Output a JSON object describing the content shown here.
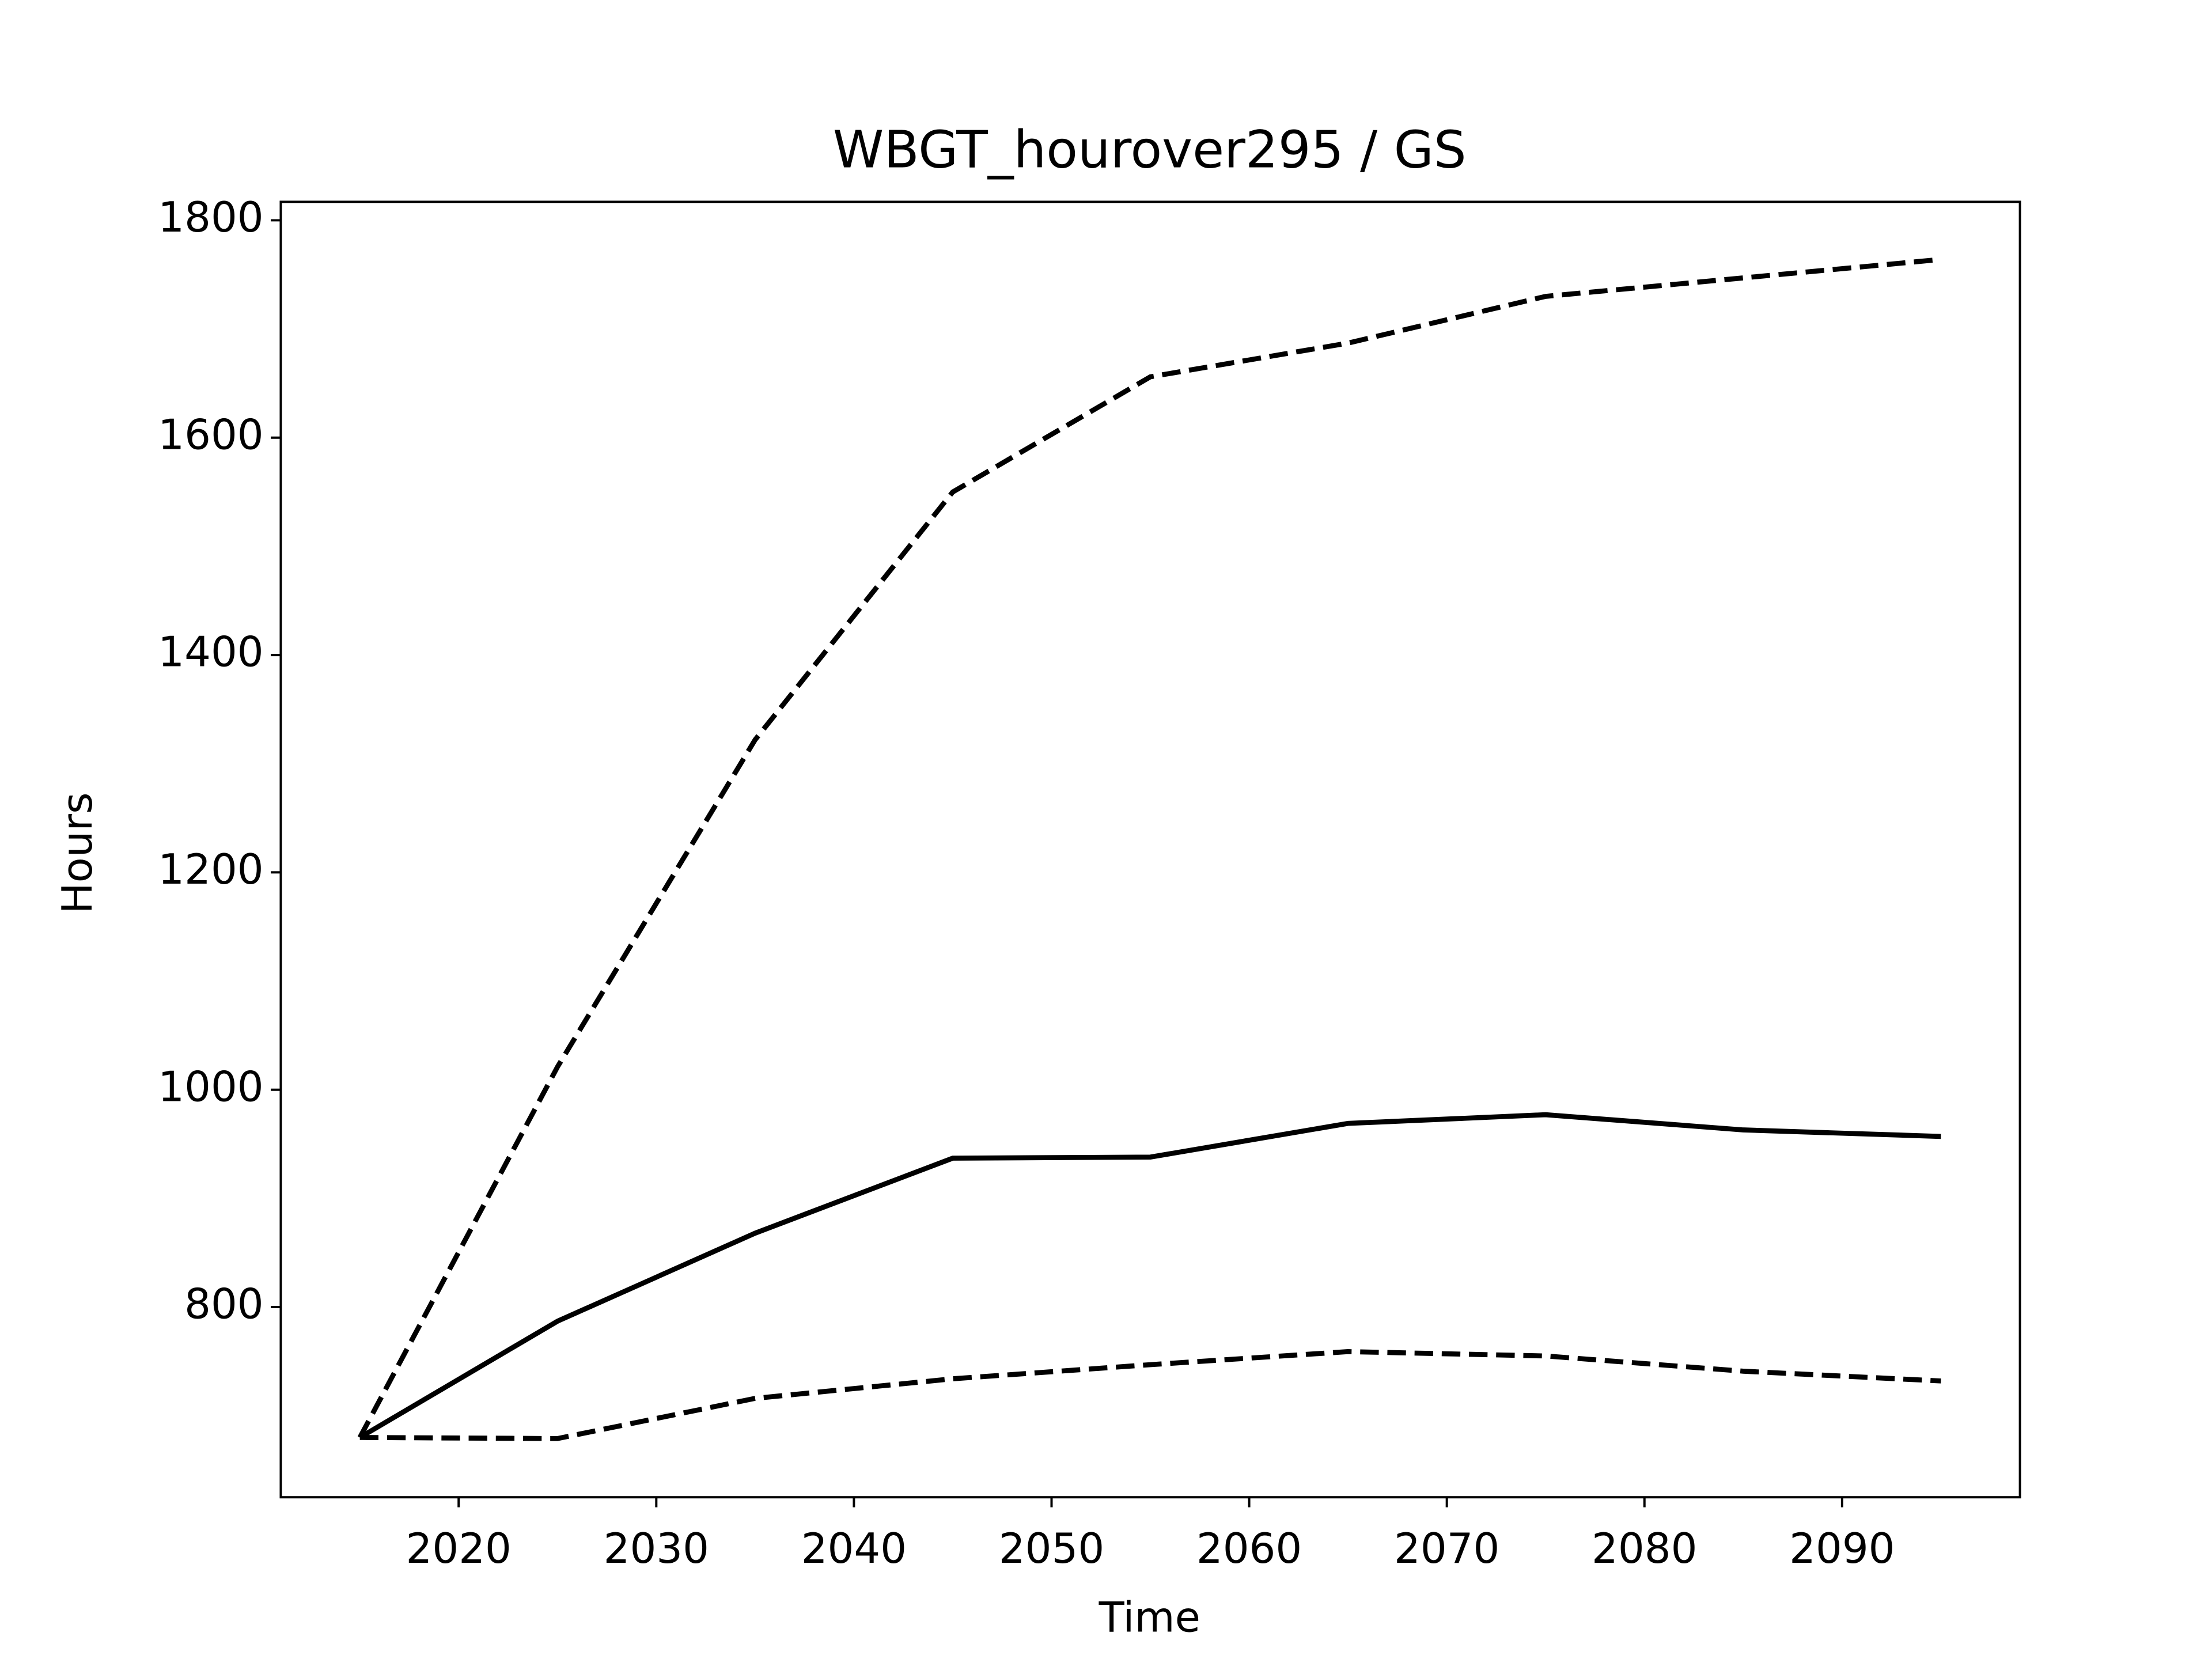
{
  "chart_data": {
    "type": "line",
    "title": "WBGT_hourover295 / GS",
    "x_label": "Time",
    "y_label": "Hours",
    "x": [
      2015,
      2025,
      2035,
      2045,
      2055,
      2065,
      2075,
      2085,
      2095
    ],
    "series": [
      {
        "color": "#000000",
        "linestyle": "solid",
        "values": [
          680,
          787,
          868,
          937,
          938,
          969,
          977,
          963,
          957
        ]
      },
      {
        "color": "#000000",
        "linestyle": "dashed",
        "values": [
          680,
          1021,
          1322,
          1550,
          1656,
          1687,
          1730,
          1747,
          1764
        ]
      },
      {
        "color": "#000000",
        "linestyle": "dashed",
        "values": [
          680,
          679,
          716,
          734,
          747,
          759,
          755,
          741,
          732
        ]
      }
    ],
    "xlim": [
      2011,
      2099
    ],
    "ylim": [
      625,
      1817
    ],
    "xticks": [
      2020,
      2030,
      2040,
      2050,
      2060,
      2070,
      2080,
      2090
    ],
    "yticks": [
      800,
      1000,
      1200,
      1400,
      1600,
      1800
    ],
    "grid": false
  }
}
